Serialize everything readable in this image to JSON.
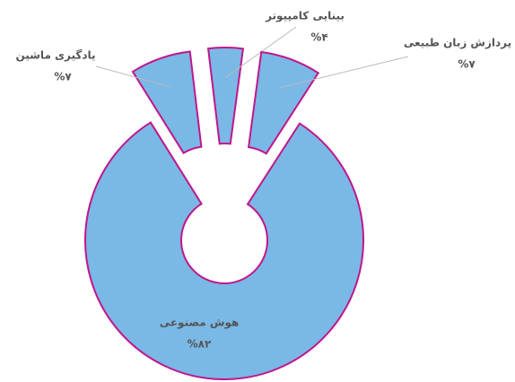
{
  "chart_data": {
    "type": "donut",
    "categories": [
      "یادگیری ماشین",
      "بینایی کامپیوتر",
      "پردازش زبان طبیعی",
      "هوش مصنوعی"
    ],
    "values": [
      7,
      4,
      7,
      82
    ],
    "value_labels": [
      "%۷",
      "%۴",
      "%۷",
      "%۸۲"
    ],
    "color": "#7ab8e6",
    "edge_color": "#c0168c"
  }
}
